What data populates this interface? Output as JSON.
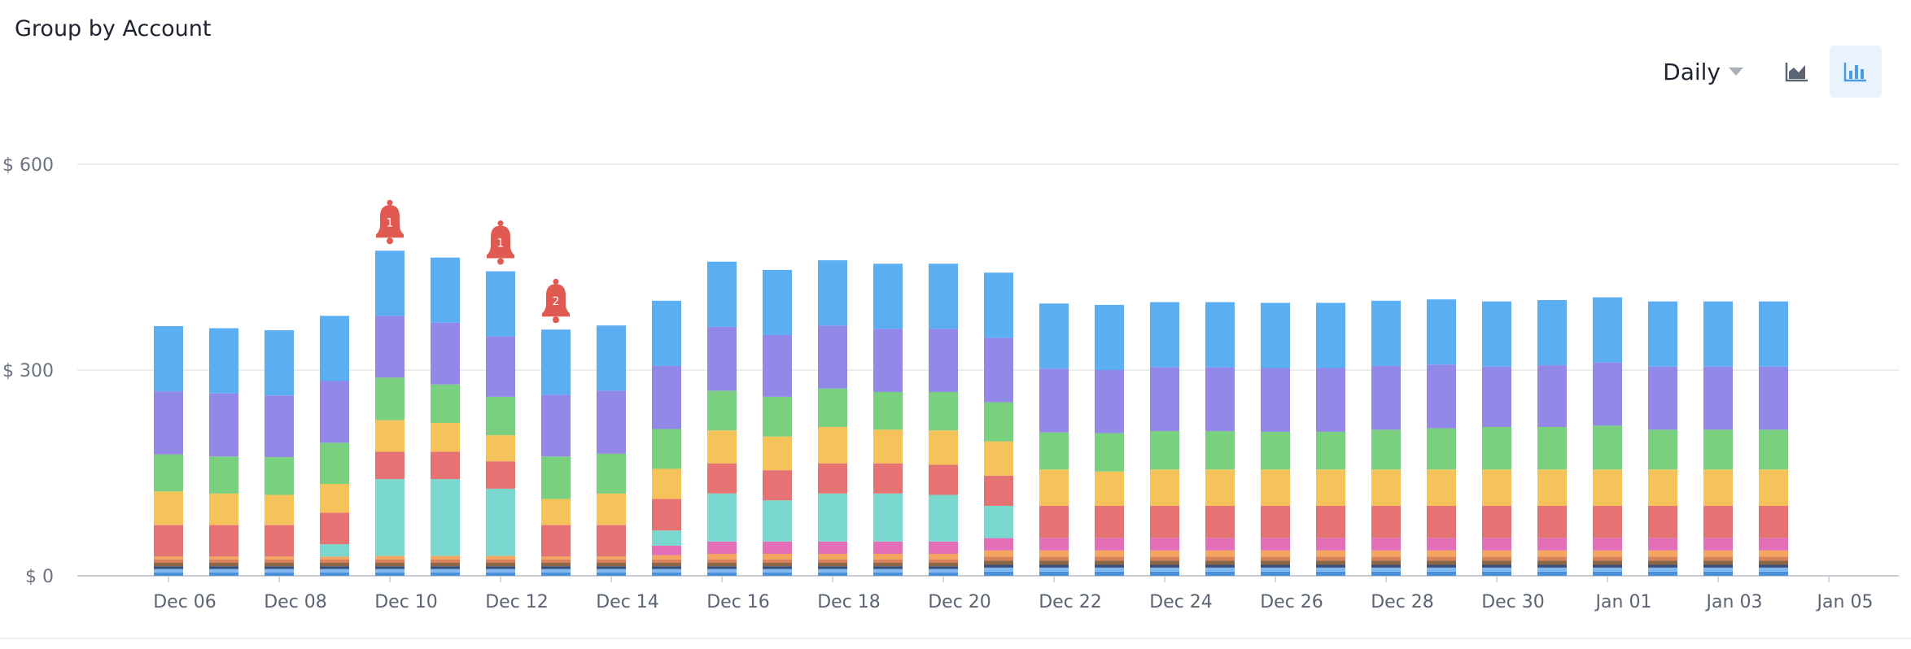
{
  "header": {
    "title": "Group by Account"
  },
  "controls": {
    "period_label": "Daily",
    "area_icon": "area-chart-icon",
    "bar_icon": "bar-chart-icon",
    "active_view": "bar"
  },
  "chart_data": {
    "type": "bar",
    "stacked": true,
    "title": "",
    "xlabel": "",
    "ylabel": "",
    "ylim": [
      0,
      600
    ],
    "y_ticks": [
      {
        "value": 0,
        "label": "$ 0"
      },
      {
        "value": 300,
        "label": "$ 300"
      },
      {
        "value": 600,
        "label": "$ 600"
      }
    ],
    "x_tick_labels": [
      "Dec 06",
      "Dec 08",
      "Dec 10",
      "Dec 12",
      "Dec 14",
      "Dec 16",
      "Dec 18",
      "Dec 20",
      "Dec 22",
      "Dec 24",
      "Dec 26",
      "Dec 28",
      "Dec 30",
      "Jan 01",
      "Jan 03",
      "Jan 05"
    ],
    "grid": true,
    "legend": "none",
    "categories": [
      "Dec 06",
      "Dec 07",
      "Dec 08",
      "Dec 09",
      "Dec 10",
      "Dec 11",
      "Dec 12",
      "Dec 13",
      "Dec 14",
      "Dec 15",
      "Dec 16",
      "Dec 17",
      "Dec 18",
      "Dec 19",
      "Dec 20",
      "Dec 21",
      "Dec 22",
      "Dec 23",
      "Dec 24",
      "Dec 25",
      "Dec 26",
      "Dec 27",
      "Dec 28",
      "Dec 29",
      "Dec 30",
      "Dec 31",
      "Jan 01",
      "Jan 02",
      "Jan 03",
      "Jan 04"
    ],
    "series": [
      {
        "color": "#4a90d9",
        "values": [
          5,
          5,
          5,
          5,
          5,
          5,
          5,
          5,
          5,
          5,
          5,
          5,
          5,
          5,
          5,
          6,
          6,
          6,
          6,
          6,
          6,
          6,
          6,
          6,
          6,
          6,
          6,
          6,
          6,
          6
        ]
      },
      {
        "color": "#7fb8f0",
        "values": [
          5,
          5,
          5,
          5,
          5,
          5,
          5,
          5,
          5,
          5,
          5,
          5,
          5,
          5,
          5,
          6,
          6,
          6,
          6,
          6,
          6,
          6,
          6,
          6,
          6,
          6,
          6,
          6,
          6,
          6
        ]
      },
      {
        "color": "#3a4e7a",
        "values": [
          4,
          4,
          4,
          4,
          4,
          4,
          4,
          4,
          4,
          4,
          4,
          4,
          4,
          4,
          4,
          4,
          4,
          4,
          4,
          4,
          4,
          4,
          4,
          4,
          4,
          4,
          4,
          4,
          4,
          4
        ]
      },
      {
        "color": "#8a6548",
        "values": [
          5,
          5,
          5,
          5,
          5,
          5,
          5,
          5,
          5,
          5,
          5,
          5,
          5,
          5,
          5,
          6,
          6,
          6,
          6,
          6,
          6,
          6,
          6,
          6,
          6,
          6,
          6,
          6,
          6,
          6
        ]
      },
      {
        "color": "#d9825a",
        "values": [
          5,
          5,
          5,
          5,
          5,
          5,
          5,
          5,
          5,
          5,
          5,
          5,
          5,
          5,
          5,
          6,
          6,
          6,
          6,
          6,
          6,
          6,
          6,
          6,
          6,
          6,
          6,
          6,
          6,
          6
        ]
      },
      {
        "color": "#f4a661",
        "values": [
          4,
          4,
          4,
          4,
          5,
          5,
          5,
          4,
          4,
          6,
          8,
          8,
          8,
          8,
          8,
          9,
          9,
          9,
          9,
          9,
          9,
          9,
          9,
          9,
          9,
          9,
          9,
          9,
          9,
          9
        ]
      },
      {
        "color": "#e56fb6",
        "values": [
          0,
          0,
          0,
          0,
          0,
          0,
          0,
          0,
          0,
          14,
          18,
          18,
          18,
          18,
          18,
          18,
          18,
          18,
          18,
          18,
          18,
          18,
          18,
          18,
          18,
          18,
          18,
          18,
          18,
          18
        ]
      },
      {
        "color": "#7ad8cf",
        "values": [
          0,
          0,
          0,
          18,
          112,
          112,
          98,
          0,
          0,
          22,
          70,
          60,
          70,
          70,
          68,
          47,
          0,
          0,
          0,
          0,
          0,
          0,
          0,
          0,
          0,
          0,
          0,
          0,
          0,
          0
        ]
      },
      {
        "color": "#e57373",
        "values": [
          46,
          46,
          46,
          46,
          40,
          40,
          40,
          46,
          46,
          46,
          44,
          44,
          44,
          44,
          44,
          44,
          47,
          47,
          47,
          47,
          47,
          47,
          47,
          47,
          47,
          47,
          47,
          47,
          47,
          47
        ]
      },
      {
        "color": "#f6c35a",
        "values": [
          49,
          46,
          44,
          42,
          46,
          42,
          38,
          38,
          46,
          44,
          48,
          49,
          53,
          49,
          50,
          50,
          53,
          50,
          53,
          53,
          53,
          53,
          53,
          53,
          53,
          53,
          53,
          53,
          53,
          53
        ]
      },
      {
        "color": "#79d07f",
        "values": [
          54,
          54,
          55,
          60,
          62,
          56,
          56,
          62,
          58,
          58,
          58,
          58,
          56,
          55,
          56,
          57,
          54,
          56,
          56,
          56,
          55,
          55,
          58,
          60,
          62,
          62,
          64,
          58,
          58,
          58
        ]
      },
      {
        "color": "#9188e8",
        "values": [
          92,
          92,
          90,
          90,
          90,
          90,
          88,
          90,
          92,
          92,
          93,
          90,
          92,
          92,
          92,
          94,
          93,
          92,
          93,
          93,
          93,
          93,
          93,
          93,
          88,
          90,
          92,
          92,
          92,
          92
        ]
      },
      {
        "color": "#5caef3",
        "values": [
          95,
          95,
          95,
          95,
          95,
          95,
          95,
          95,
          95,
          95,
          95,
          95,
          95,
          95,
          95,
          95,
          95,
          95,
          95,
          95,
          95,
          95,
          95,
          95,
          95,
          95,
          95,
          95,
          95,
          95
        ]
      }
    ],
    "alerts": [
      {
        "category": "Dec 10",
        "count": "1"
      },
      {
        "category": "Dec 12",
        "count": "1"
      },
      {
        "category": "Dec 13",
        "count": "2"
      }
    ]
  }
}
